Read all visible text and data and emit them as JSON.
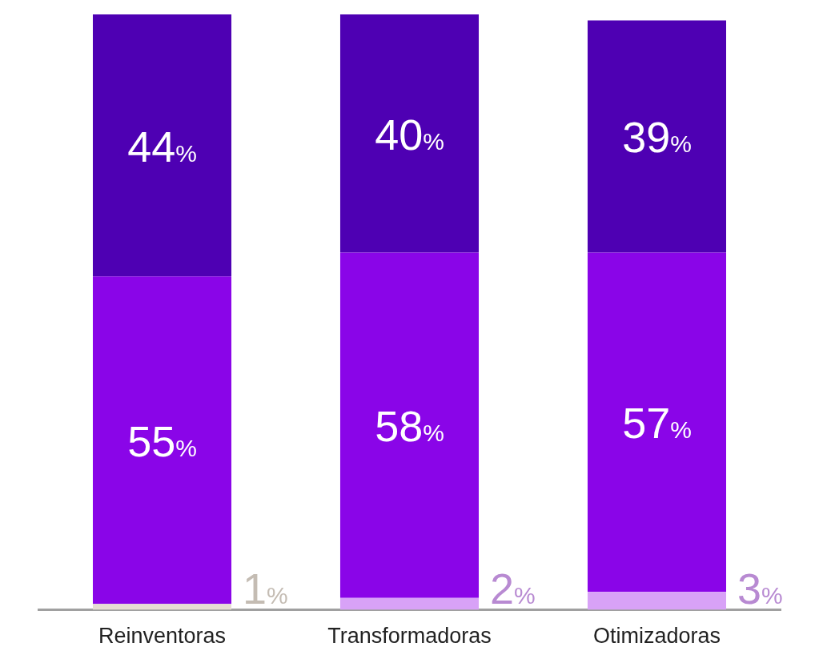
{
  "chart_data": {
    "type": "bar",
    "stacked": true,
    "categories": [
      "Reinventoras",
      "Transformadoras",
      "Otimizadoras"
    ],
    "series": [
      {
        "colors": [
          "#e6ddd3",
          "#d8a2f7",
          "#d8a2f7"
        ],
        "values": [
          1,
          2,
          3
        ],
        "value_labels": [
          "1%",
          "2%",
          "3%"
        ]
      },
      {
        "color": "#8a05e8",
        "values": [
          55,
          58,
          57
        ],
        "value_labels": [
          "55%",
          "58%",
          "57%"
        ]
      },
      {
        "color": "#4e00b3",
        "values": [
          44,
          40,
          39
        ],
        "value_labels": [
          "44%",
          "40%",
          "39%"
        ]
      }
    ],
    "ylim": [
      0,
      100
    ],
    "tick_labels": "x"
  }
}
